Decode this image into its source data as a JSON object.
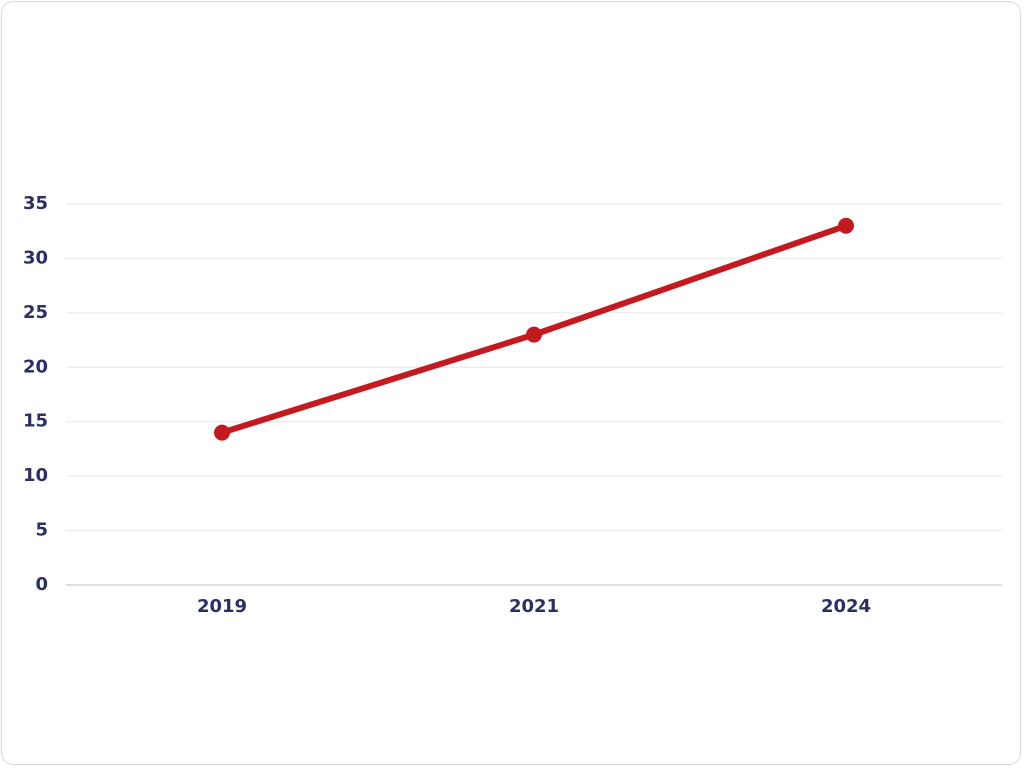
{
  "chart_data": {
    "type": "line",
    "categories": [
      "2019",
      "2021",
      "2024"
    ],
    "values": [
      14,
      23,
      33
    ],
    "color": "#c41a1f",
    "ylim": [
      0,
      35
    ],
    "yticks": [
      0,
      5,
      10,
      15,
      20,
      25,
      30,
      35
    ],
    "grid": true
  }
}
